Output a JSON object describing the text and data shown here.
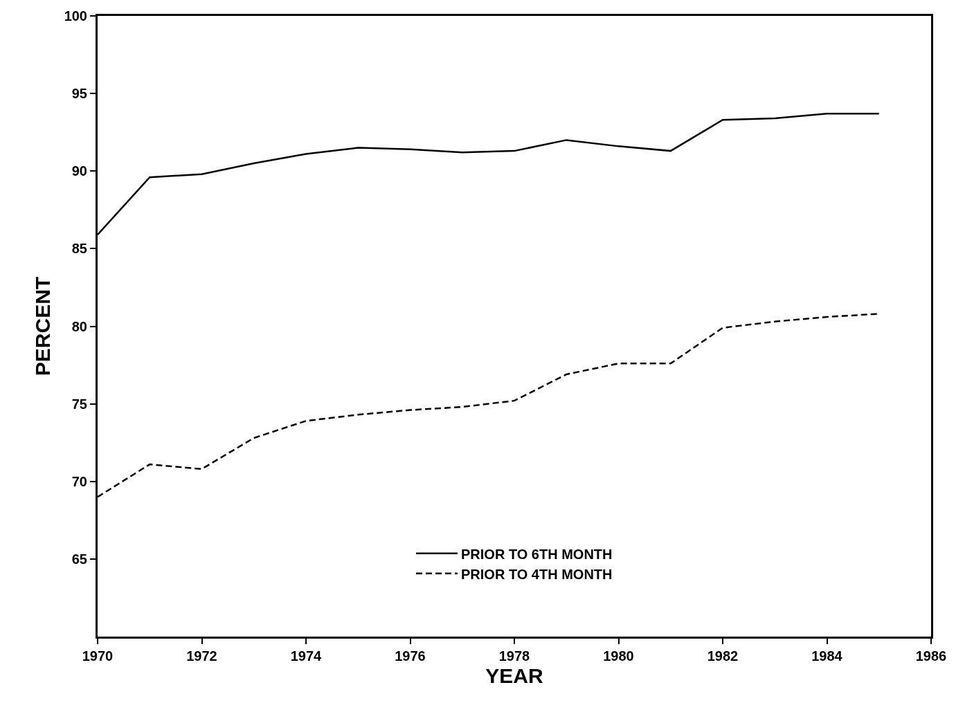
{
  "chart_data": {
    "type": "line",
    "xlabel": "YEAR",
    "ylabel": "PERCENT",
    "x": [
      1970,
      1971,
      1972,
      1973,
      1974,
      1975,
      1976,
      1977,
      1978,
      1979,
      1980,
      1981,
      1982,
      1983,
      1984,
      1985
    ],
    "series": [
      {
        "name": "PRIOR TO 6TH MONTH",
        "color": "#000000",
        "line_style": "solid",
        "values": [
          85.9,
          89.6,
          89.8,
          90.5,
          91.1,
          91.5,
          91.4,
          91.2,
          91.3,
          92.0,
          91.6,
          91.3,
          93.3,
          93.4,
          93.7,
          93.7
        ]
      },
      {
        "name": "PRIOR TO 4TH MONTH",
        "color": "#000000",
        "line_style": "dashed",
        "values": [
          69.0,
          71.1,
          70.8,
          72.8,
          73.9,
          74.3,
          74.6,
          74.8,
          75.2,
          76.9,
          77.6,
          77.6,
          79.9,
          80.3,
          80.6,
          80.8
        ]
      }
    ],
    "xlim": [
      1970,
      1986
    ],
    "xticks": [
      1970,
      1972,
      1974,
      1976,
      1978,
      1980,
      1982,
      1984,
      1986
    ],
    "ylim": [
      60,
      100
    ],
    "yticks": [
      65,
      70,
      75,
      80,
      85,
      90,
      95,
      100
    ],
    "legend": "bottom",
    "marker": "none"
  }
}
